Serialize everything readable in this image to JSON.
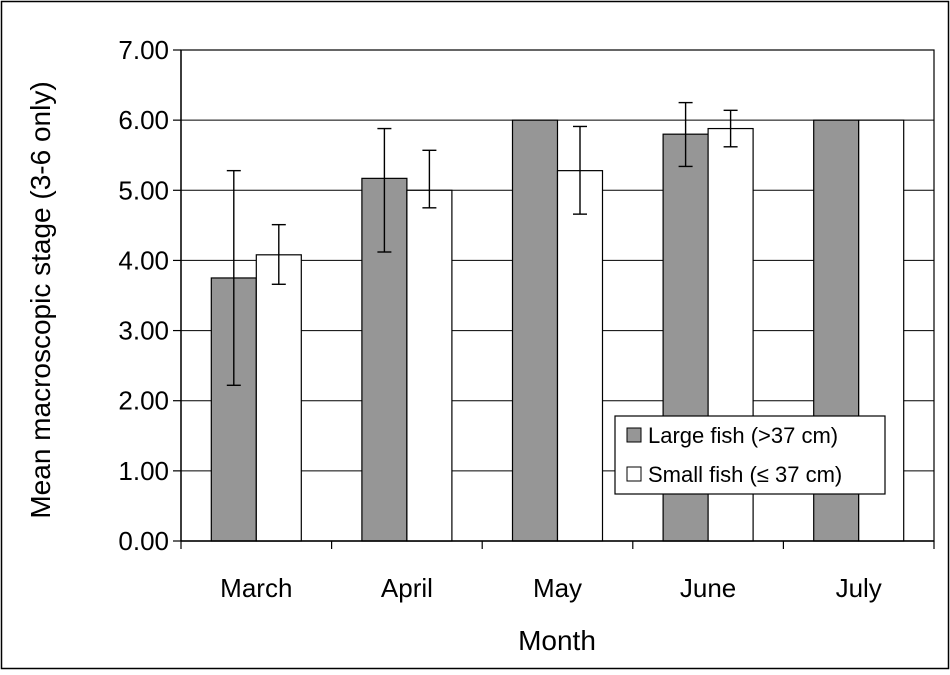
{
  "chart_data": {
    "type": "bar",
    "title": "",
    "xlabel": "Month",
    "ylabel": "Mean macroscopic stage (3-6 only)",
    "categories": [
      "March",
      "April",
      "May",
      "June",
      "July"
    ],
    "ylim": [
      0,
      7
    ],
    "yticks": [
      0,
      1,
      2,
      3,
      4,
      5,
      6,
      7
    ],
    "ytick_labels": [
      "0.00",
      "1.00",
      "2.00",
      "3.00",
      "4.00",
      "5.00",
      "6.00",
      "7.00"
    ],
    "grid": "horizontal",
    "legend_position": "lower-right",
    "series": [
      {
        "name": "Large fish (>37 cm)",
        "color": "#969696",
        "values": [
          3.75,
          5.17,
          6.0,
          5.8,
          6.0
        ],
        "error_low": [
          2.22,
          4.12,
          null,
          5.34,
          null
        ],
        "error_high": [
          5.28,
          5.88,
          null,
          6.25,
          null
        ]
      },
      {
        "name": "Small fish (≤ 37 cm)",
        "color": "#ffffff",
        "values": [
          4.08,
          5.0,
          5.28,
          5.88,
          6.0
        ],
        "error_low": [
          3.66,
          4.75,
          4.66,
          5.62,
          null
        ],
        "error_high": [
          4.51,
          5.57,
          5.91,
          6.14,
          null
        ]
      }
    ]
  }
}
